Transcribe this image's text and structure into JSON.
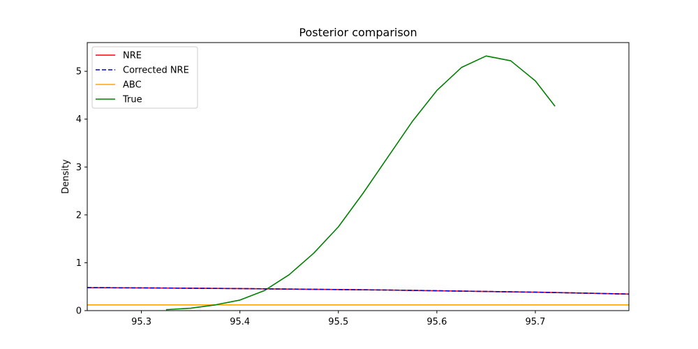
{
  "chart_data": {
    "type": "line",
    "title": "Posterior comparison",
    "xlabel": "",
    "ylabel": "Density",
    "xlim": [
      95.245,
      95.795
    ],
    "ylim": [
      0,
      5.6
    ],
    "xticks": [
      95.3,
      95.4,
      95.5,
      95.6,
      95.7
    ],
    "yticks": [
      0,
      1,
      2,
      3,
      4,
      5
    ],
    "grid": false,
    "legend_position": "top-left",
    "series": [
      {
        "name": "NRE",
        "color": "#ff0000",
        "style": "solid",
        "x": [
          95.245,
          95.3,
          95.35,
          95.4,
          95.45,
          95.5,
          95.55,
          95.6,
          95.65,
          95.7,
          95.75,
          95.795
        ],
        "y": [
          0.48,
          0.475,
          0.468,
          0.46,
          0.45,
          0.44,
          0.43,
          0.415,
          0.4,
          0.385,
          0.365,
          0.345
        ]
      },
      {
        "name": "Corrected NRE",
        "color": "#0000cc",
        "style": "dashed",
        "x": [
          95.245,
          95.3,
          95.35,
          95.4,
          95.45,
          95.5,
          95.55,
          95.6,
          95.65,
          95.7,
          95.75,
          95.795
        ],
        "y": [
          0.48,
          0.475,
          0.468,
          0.46,
          0.45,
          0.44,
          0.43,
          0.415,
          0.4,
          0.385,
          0.365,
          0.345
        ]
      },
      {
        "name": "ABC",
        "color": "#ffa500",
        "style": "solid",
        "x": [
          95.245,
          95.795
        ],
        "y": [
          0.12,
          0.12
        ]
      },
      {
        "name": "True",
        "color": "#008000",
        "style": "solid",
        "x": [
          95.325,
          95.35,
          95.375,
          95.4,
          95.425,
          95.45,
          95.475,
          95.5,
          95.525,
          95.55,
          95.575,
          95.6,
          95.625,
          95.65,
          95.675,
          95.7,
          95.72
        ],
        "y": [
          0.02,
          0.05,
          0.12,
          0.22,
          0.42,
          0.75,
          1.2,
          1.75,
          2.45,
          3.2,
          3.95,
          4.6,
          5.08,
          5.32,
          5.22,
          4.8,
          4.27
        ]
      }
    ]
  }
}
